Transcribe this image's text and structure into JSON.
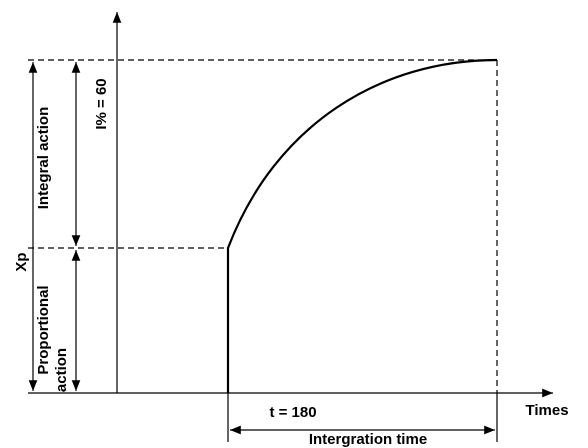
{
  "labels": {
    "xp": "Xp",
    "integral_action": "Integral action",
    "integral_percent": "I% = 60",
    "proportional": "Proportional",
    "action": "action",
    "time_value": "t = 180",
    "x_axis": "Times",
    "integration_time": "Intergration time"
  }
}
